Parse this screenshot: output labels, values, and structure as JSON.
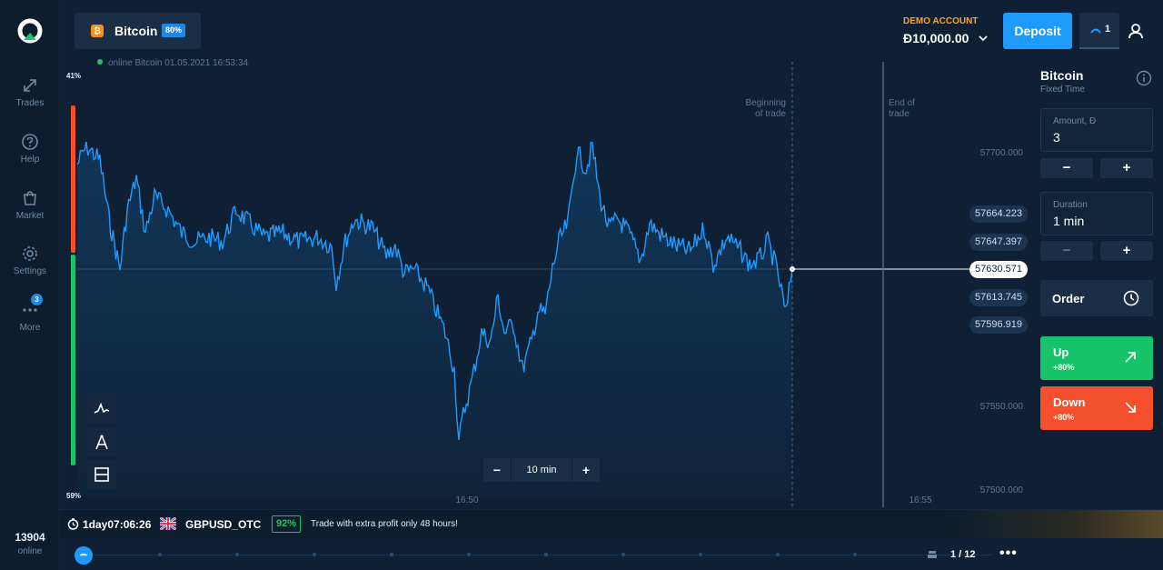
{
  "sidebar": {
    "items": [
      {
        "label": "Trades",
        "icon": "trades-icon"
      },
      {
        "label": "Help",
        "icon": "help-icon"
      },
      {
        "label": "Market",
        "icon": "market-icon"
      },
      {
        "label": "Settings",
        "icon": "settings-icon"
      },
      {
        "label": "More",
        "icon": "more-icon",
        "badge": "3"
      }
    ],
    "online_count": "13904",
    "online_label": "online"
  },
  "header": {
    "asset_tab": {
      "name": "Bitcoin",
      "percent": "80%",
      "icon_glyph": "₿"
    },
    "online_status": "online Bitcoin  01.05.2021 16:53:34",
    "account_label": "DEMO ACCOUNT",
    "balance": "Đ10,000.00",
    "deposit_label": "Deposit",
    "open_trades": "1"
  },
  "chart": {
    "top_percent": "41%",
    "bottom_percent": "59%",
    "beginning_label": [
      "Beginning",
      "of trade"
    ],
    "end_label": [
      "End of",
      "trade"
    ],
    "x_ticks": [
      "16:50",
      "16:55"
    ],
    "y_ticks": [
      "57700.000",
      "57550.000",
      "57500.000"
    ],
    "price_levels": [
      "57664.223",
      "57647.397",
      "57630.571",
      "57613.745",
      "57596.919"
    ],
    "current_price": "57630.571",
    "zoom": {
      "minus": "−",
      "value": "10 min",
      "plus": "+"
    },
    "colors": {
      "line": "#1e9bff",
      "up_bar": "#17c46b",
      "down_bar": "#f5502d"
    }
  },
  "panel": {
    "asset": "Bitcoin",
    "mode": "Fixed Time",
    "amount_label": "Amount, Đ",
    "amount_value": "3",
    "duration_label": "Duration",
    "duration_value": "1 min",
    "minus": "−",
    "plus": "+",
    "order_label": "Order",
    "up_label": "Up",
    "up_pct": "+80%",
    "down_label": "Down",
    "down_pct": "+80%"
  },
  "promo": {
    "timer": "1day07:06:26",
    "pair": "GBPUSD_OTC",
    "pair_pct": "92%",
    "message": "Trade with extra profit only 48 hours!"
  },
  "timeline": {
    "page": "1 / 12",
    "more": "•••"
  }
}
